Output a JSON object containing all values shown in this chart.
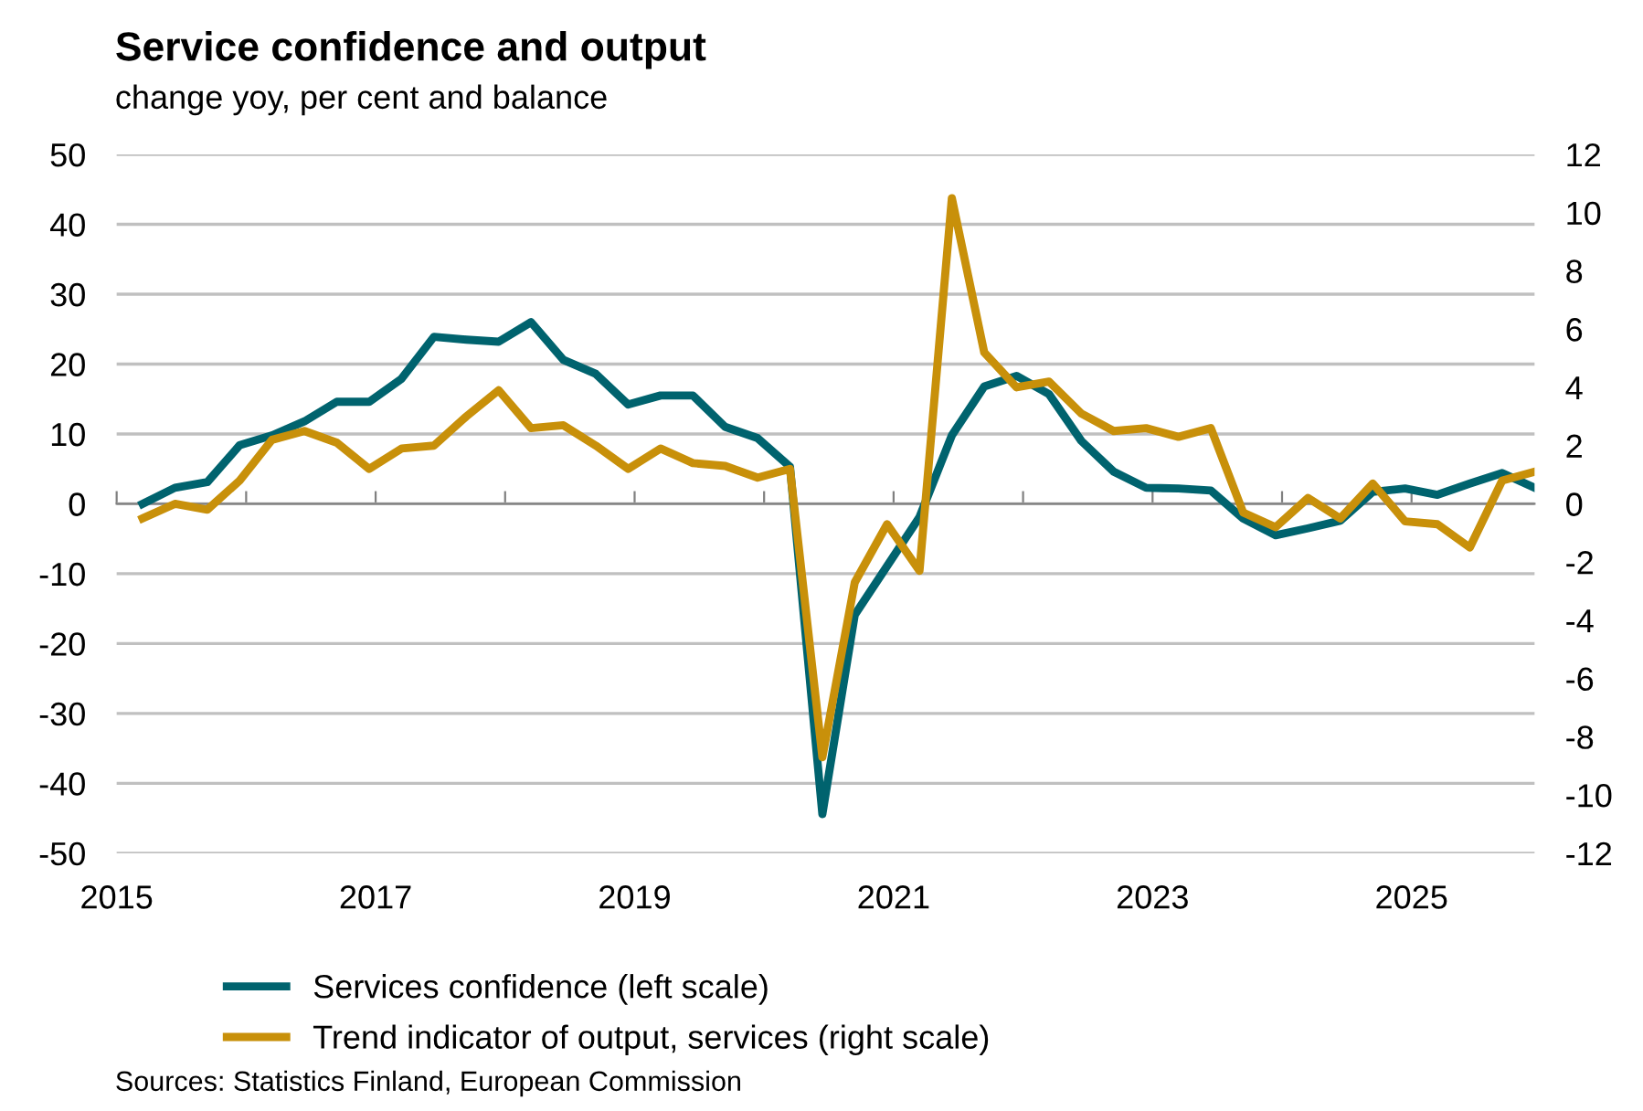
{
  "chart_data": {
    "type": "line",
    "title": "Service confidence and output",
    "subtitle": "change yoy, per cent and balance",
    "x": [
      2015.2,
      2015.45,
      2015.7,
      2015.95,
      2016.2,
      2016.45,
      2016.7,
      2016.95,
      2017.2,
      2017.45,
      2017.7,
      2017.95,
      2018.2,
      2018.45,
      2018.7,
      2018.95,
      2019.2,
      2019.45,
      2019.7,
      2019.95,
      2020.2,
      2020.45,
      2020.7,
      2020.95,
      2021.2,
      2021.45,
      2021.7,
      2021.95,
      2022.2,
      2022.45,
      2022.7,
      2022.95,
      2023.2,
      2023.45,
      2023.7,
      2023.95,
      2024.2,
      2024.45,
      2024.7,
      2024.95,
      2025.2,
      2025.45,
      2025.7,
      2025.95
    ],
    "series": [
      {
        "name": "Services confidence (left scale)",
        "color": "#00636e",
        "values": [
          0,
          2.3,
          3.1,
          8.4,
          9.8,
          11.8,
          14.6,
          14.6,
          17.9,
          23.9,
          23.5,
          23.2,
          26.0,
          20.6,
          18.6,
          14.2,
          15.5,
          15.5,
          11.0,
          9.4,
          5.3,
          -44.4,
          -15.9,
          -8.9,
          -1.9,
          9.8,
          16.8,
          18.3,
          15.7,
          9.0,
          4.6,
          2.3,
          2.2,
          1.9,
          -2.1,
          -4.5,
          -3.5,
          -2.4,
          1.7,
          2.2,
          1.3,
          2.9,
          4.4,
          2.3
        ]
      },
      {
        "name": "Trend indicator of output, services (right scale)",
        "color": "#c8900a",
        "axis": "y2",
        "values": [
          -0.5,
          0.0,
          -0.2,
          0.8,
          2.2,
          2.5,
          2.1,
          1.2,
          1.9,
          2.0,
          3.0,
          3.9,
          2.6,
          2.7,
          2.0,
          1.2,
          1.9,
          1.4,
          1.3,
          0.9,
          1.2,
          -8.7,
          -2.7,
          -0.7,
          -2.3,
          10.5,
          5.2,
          4.0,
          4.2,
          3.1,
          2.5,
          2.6,
          2.3,
          2.6,
          -0.3,
          -0.8,
          0.2,
          -0.5,
          0.7,
          -0.6,
          -0.7,
          -1.5,
          0.8,
          1.1
        ]
      }
    ],
    "xlim": [
      2015,
      2025.95
    ],
    "xticks": [
      2015,
      {
        "value": 2016,
        "label": null
      },
      2017,
      {
        "value": 2018,
        "label": null
      },
      2019,
      {
        "value": 2020,
        "label": null
      },
      2021,
      {
        "value": 2022,
        "label": null
      },
      2023,
      {
        "value": 2024,
        "label": null
      },
      2025
    ],
    "ylim": [
      -50,
      50
    ],
    "yticks": [
      -50,
      -40,
      -30,
      -20,
      -10,
      0,
      10,
      20,
      30,
      40,
      50
    ],
    "y2lim": [
      -12,
      12
    ],
    "y2ticks": [
      -12,
      -10,
      -8,
      -6,
      -4,
      -2,
      0,
      2,
      4,
      6,
      8,
      10,
      12
    ],
    "grid": "y",
    "legend": "bottom",
    "marker": "none",
    "line_style": "solid",
    "annotations": [
      "Sources: Statistics Finland, European Commission"
    ]
  }
}
